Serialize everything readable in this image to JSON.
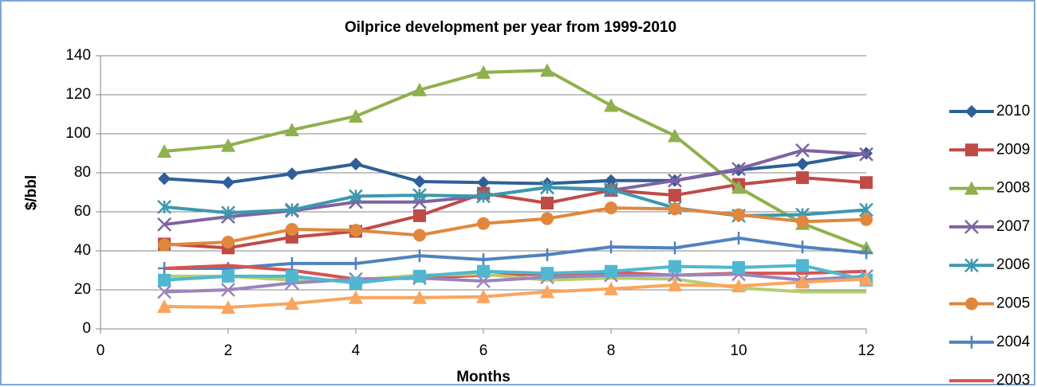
{
  "chart_data": {
    "type": "line",
    "title": "Oilprice development per year from 1999-2010",
    "x_label": "Months",
    "y_label": "$/bbl",
    "x": [
      1,
      2,
      3,
      4,
      5,
      6,
      7,
      8,
      9,
      10,
      11,
      12
    ],
    "xlim": [
      0,
      12
    ],
    "xticks": [
      0,
      2,
      4,
      6,
      8,
      10,
      12
    ],
    "ylim": [
      0,
      140
    ],
    "yticks": [
      0,
      20,
      40,
      60,
      80,
      100,
      120,
      140
    ],
    "grid": true,
    "legend": "right",
    "series": [
      {
        "name": "2010",
        "color": "#2f5f98",
        "marker": "diamond",
        "values": [
          77,
          75,
          79.5,
          84.5,
          75.5,
          75,
          74.5,
          76,
          76,
          81.5,
          84.5,
          90
        ]
      },
      {
        "name": "2009",
        "color": "#be4b48",
        "marker": "square",
        "values": [
          43.5,
          41.5,
          47,
          50,
          58,
          69.5,
          64.5,
          71,
          68.5,
          74,
          77.5,
          75
        ]
      },
      {
        "name": "2008",
        "color": "#8fb04c",
        "marker": "triangle",
        "values": [
          91,
          94,
          102,
          109,
          122.5,
          131.5,
          132.5,
          114.5,
          99,
          72.5,
          54,
          41.5
        ]
      },
      {
        "name": "2007",
        "color": "#7f63a1",
        "marker": "x",
        "values": [
          53.5,
          57.5,
          60.5,
          65,
          65,
          68,
          72.5,
          71,
          76,
          82,
          91.5,
          89.5
        ]
      },
      {
        "name": "2006",
        "color": "#3c98ad",
        "marker": "star",
        "values": [
          62.5,
          59.5,
          61,
          68,
          68.5,
          68,
          72.5,
          71.5,
          62,
          58,
          58.5,
          61
        ]
      },
      {
        "name": "2005",
        "color": "#e0873c",
        "marker": "circle",
        "values": [
          43,
          44.5,
          51,
          50.5,
          48,
          54,
          56.5,
          62,
          61.5,
          58.5,
          55,
          56
        ]
      },
      {
        "name": "2004",
        "color": "#4f81bd",
        "marker": "plus",
        "values": [
          31,
          31,
          33.5,
          33.5,
          37.5,
          35.5,
          38,
          42,
          41.5,
          46.5,
          42,
          39
        ]
      },
      {
        "name": "2003",
        "color": "#d9534f",
        "marker": "none",
        "values": [
          31,
          32.5,
          30,
          25.5,
          26,
          27.5,
          28,
          29,
          27.5,
          28.5,
          28.5,
          29.5
        ]
      },
      {
        "color": "#b3cf72",
        "marker": "none",
        "values": [
          27,
          27,
          25,
          25,
          27.5,
          28,
          25,
          26,
          25.5,
          21,
          19,
          19
        ]
      },
      {
        "color": "#9a84bd",
        "marker": "x",
        "values": [
          19,
          20,
          23.5,
          25.5,
          26,
          24.5,
          26.5,
          27.5,
          27.5,
          28,
          25,
          27
        ]
      },
      {
        "color": "#4fb8d0",
        "marker": "square",
        "values": [
          25,
          27,
          27,
          23.5,
          27,
          29.5,
          28.5,
          29.5,
          32,
          31.5,
          32.5,
          25
        ]
      },
      {
        "color": "#f9a55e",
        "marker": "triangle",
        "values": [
          11.5,
          11,
          13,
          16,
          16,
          16.5,
          19,
          20.5,
          22.5,
          22,
          24,
          25.5
        ]
      }
    ]
  }
}
